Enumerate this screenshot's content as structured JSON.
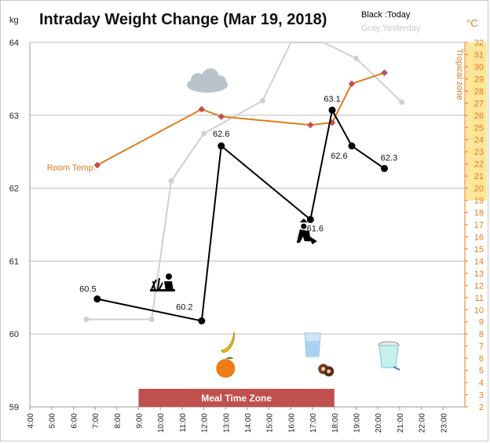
{
  "chart_data": {
    "type": "line",
    "title": "Intraday Weight Change (Mar 19, 2018)",
    "legend": {
      "today": "Black :Today",
      "yesterday": "Gray:Yesterday"
    },
    "ylabel_left": "kg",
    "ylabel_right": "°C",
    "ylim": [
      59,
      64
    ],
    "y_ticks": [
      "59",
      "60",
      "61",
      "62",
      "63",
      "64"
    ],
    "y2lim": [
      2,
      32
    ],
    "y2_ticks": [
      "2",
      "3",
      "4",
      "5",
      "6",
      "7",
      "8",
      "9",
      "10",
      "11",
      "12",
      "13",
      "14",
      "15",
      "16",
      "17",
      "18",
      "19",
      "20",
      "21",
      "22",
      "23",
      "24",
      "25",
      "26",
      "27",
      "28",
      "29",
      "30",
      "31",
      "32"
    ],
    "xlim": [
      4,
      24
    ],
    "x_ticks": [
      "4:00",
      "5:00",
      "6:00",
      "7:00",
      "8:00",
      "9:00",
      "10:00",
      "11:00",
      "12:00",
      "13:00",
      "14:00",
      "15:00",
      "16:00",
      "17:00",
      "18:00",
      "19:00",
      "20:00",
      "21:00",
      "22:00",
      "23:00"
    ],
    "tropical_zone": {
      "label": "Tropical zone",
      "range": [
        19,
        32
      ],
      "color": "#ffe699"
    },
    "meal_zone": {
      "label": "Meal Time Zone",
      "x": [
        9,
        18
      ],
      "color": "#c0504d"
    },
    "grid": true,
    "series": [
      {
        "name": "Today",
        "color": "#000000",
        "x": [
          7.1,
          11.9,
          12.8,
          16.9,
          17.9,
          18.8,
          20.3
        ],
        "y": [
          60.48,
          60.18,
          62.58,
          61.57,
          63.07,
          62.58,
          62.27
        ],
        "labels": [
          "60.5",
          "60.2",
          "62.6",
          "61.6",
          "63.1",
          "62.6",
          "62.3"
        ]
      },
      {
        "name": "Yesterday",
        "color": "#d0d0d0",
        "x": [
          6.6,
          9.6,
          10.5,
          12.0,
          14.7,
          16.0,
          17.5,
          19.0,
          21.1
        ],
        "y": [
          60.2,
          60.2,
          62.1,
          62.75,
          63.2,
          64.0,
          64.0,
          63.78,
          63.18
        ]
      },
      {
        "name": "Room Temp.",
        "axis": "right",
        "color": "#e07b20",
        "x": [
          7.1,
          11.9,
          12.8,
          16.9,
          17.9,
          18.8,
          20.3
        ],
        "y": [
          21.9,
          26.5,
          25.9,
          25.2,
          25.4,
          28.6,
          29.5
        ]
      }
    ],
    "icons": [
      {
        "name": "gardening-icon",
        "x": 10.1,
        "y": 60.68
      },
      {
        "name": "digging-icon",
        "x": 16.7,
        "y": 61.38
      },
      {
        "name": "banana-icon",
        "x": 13.1,
        "y": 59.9
      },
      {
        "name": "orange-icon",
        "x": 13.0,
        "y": 59.55
      },
      {
        "name": "water-glass-icon",
        "x": 17.0,
        "y": 59.85
      },
      {
        "name": "cookies-icon",
        "x": 17.6,
        "y": 59.52
      },
      {
        "name": "yogurt-cup-icon",
        "x": 20.5,
        "y": 59.7
      }
    ]
  }
}
